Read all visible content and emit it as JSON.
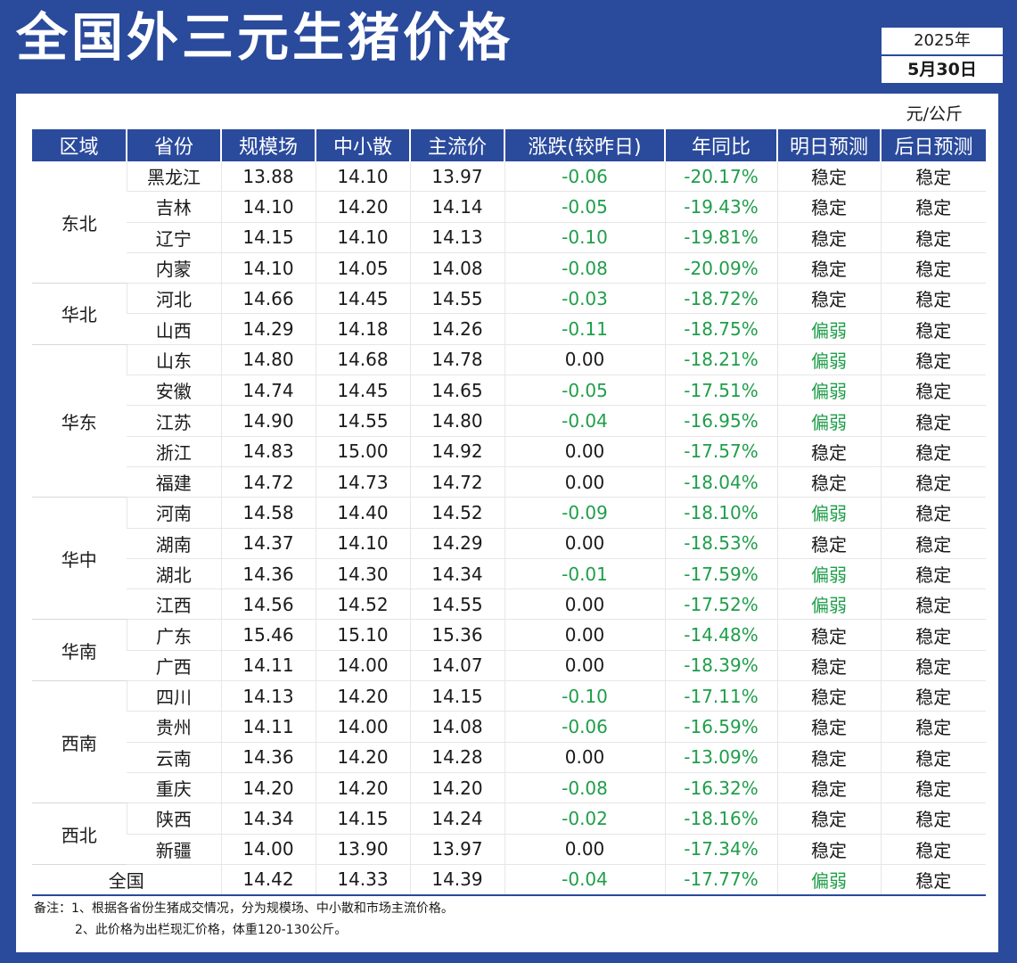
{
  "title": "全国外三元生猪价格",
  "date": {
    "year": "2025年",
    "day": "5月30日"
  },
  "unit": "元/公斤",
  "headers": [
    "区域",
    "省份",
    "规模场",
    "中小散",
    "主流价",
    "涨跌(较昨日)",
    "年同比",
    "明日预测",
    "后日预测"
  ],
  "regions": [
    {
      "name": "东北",
      "rows": [
        [
          "黑龙江",
          "13.88",
          "14.10",
          "13.97",
          "-0.06",
          "-20.17%",
          "稳定",
          "稳定"
        ],
        [
          "吉林",
          "14.10",
          "14.20",
          "14.14",
          "-0.05",
          "-19.43%",
          "稳定",
          "稳定"
        ],
        [
          "辽宁",
          "14.15",
          "14.10",
          "14.13",
          "-0.10",
          "-19.81%",
          "稳定",
          "稳定"
        ],
        [
          "内蒙",
          "14.10",
          "14.05",
          "14.08",
          "-0.08",
          "-20.09%",
          "稳定",
          "稳定"
        ]
      ]
    },
    {
      "name": "华北",
      "rows": [
        [
          "河北",
          "14.66",
          "14.45",
          "14.55",
          "-0.03",
          "-18.72%",
          "稳定",
          "稳定"
        ],
        [
          "山西",
          "14.29",
          "14.18",
          "14.26",
          "-0.11",
          "-18.75%",
          "偏弱",
          "稳定"
        ]
      ]
    },
    {
      "name": "华东",
      "rows": [
        [
          "山东",
          "14.80",
          "14.68",
          "14.78",
          "0.00",
          "-18.21%",
          "偏弱",
          "稳定"
        ],
        [
          "安徽",
          "14.74",
          "14.45",
          "14.65",
          "-0.05",
          "-17.51%",
          "偏弱",
          "稳定"
        ],
        [
          "江苏",
          "14.90",
          "14.55",
          "14.80",
          "-0.04",
          "-16.95%",
          "偏弱",
          "稳定"
        ],
        [
          "浙江",
          "14.83",
          "15.00",
          "14.92",
          "0.00",
          "-17.57%",
          "稳定",
          "稳定"
        ],
        [
          "福建",
          "14.72",
          "14.73",
          "14.72",
          "0.00",
          "-18.04%",
          "稳定",
          "稳定"
        ]
      ]
    },
    {
      "name": "华中",
      "rows": [
        [
          "河南",
          "14.58",
          "14.40",
          "14.52",
          "-0.09",
          "-18.10%",
          "偏弱",
          "稳定"
        ],
        [
          "湖南",
          "14.37",
          "14.10",
          "14.29",
          "0.00",
          "-18.53%",
          "稳定",
          "稳定"
        ],
        [
          "湖北",
          "14.36",
          "14.30",
          "14.34",
          "-0.01",
          "-17.59%",
          "偏弱",
          "稳定"
        ],
        [
          "江西",
          "14.56",
          "14.52",
          "14.55",
          "0.00",
          "-17.52%",
          "偏弱",
          "稳定"
        ]
      ]
    },
    {
      "name": "华南",
      "rows": [
        [
          "广东",
          "15.46",
          "15.10",
          "15.36",
          "0.00",
          "-14.48%",
          "稳定",
          "稳定"
        ],
        [
          "广西",
          "14.11",
          "14.00",
          "14.07",
          "0.00",
          "-18.39%",
          "稳定",
          "稳定"
        ]
      ]
    },
    {
      "name": "西南",
      "rows": [
        [
          "四川",
          "14.13",
          "14.20",
          "14.15",
          "-0.10",
          "-17.11%",
          "稳定",
          "稳定"
        ],
        [
          "贵州",
          "14.11",
          "14.00",
          "14.08",
          "-0.06",
          "-16.59%",
          "稳定",
          "稳定"
        ],
        [
          "云南",
          "14.36",
          "14.20",
          "14.28",
          "0.00",
          "-13.09%",
          "稳定",
          "稳定"
        ],
        [
          "重庆",
          "14.20",
          "14.20",
          "14.20",
          "-0.08",
          "-16.32%",
          "稳定",
          "稳定"
        ]
      ]
    },
    {
      "name": "西北",
      "rows": [
        [
          "陕西",
          "14.34",
          "14.15",
          "14.24",
          "-0.02",
          "-18.16%",
          "稳定",
          "稳定"
        ],
        [
          "新疆",
          "14.00",
          "13.90",
          "13.97",
          "0.00",
          "-17.34%",
          "稳定",
          "稳定"
        ]
      ]
    }
  ],
  "total": [
    "全国",
    "14.42",
    "14.33",
    "14.39",
    "-0.04",
    "-17.77%",
    "偏弱",
    "稳定"
  ],
  "notes": {
    "line1": "备注：1、根据各省份生猪成交情况，分为规模场、中小散和市场主流价格。",
    "line2": "2、此价格为出栏现汇价格，体重120-130公斤。"
  },
  "colors": {
    "frame": "#2a4a9c",
    "negative": "#1f9e4a",
    "weak": "#1f9e4a"
  }
}
